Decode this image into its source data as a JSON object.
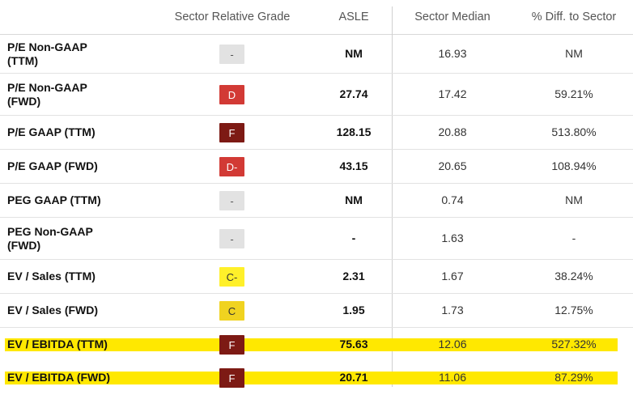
{
  "header": {
    "col_grade": "Sector Relative Grade",
    "col_ticker": "ASLE",
    "col_median": "Sector Median",
    "col_diff": "% Diff. to Sector"
  },
  "colors": {
    "grade_gray": "#e2e2e2",
    "grade_red": "#d23a35",
    "grade_darkred": "#7d1a14",
    "grade_yellow": "#fff02a",
    "grade_gold": "#f0d320",
    "highlight": "#ffe800"
  },
  "rows": [
    {
      "metric_line1": "P/E Non-GAAP",
      "metric_line2": "(TTM)",
      "grade": "-",
      "asle": "NM",
      "median": "16.93",
      "diff": "NM"
    },
    {
      "metric_line1": "P/E Non-GAAP",
      "metric_line2": "(FWD)",
      "grade": "D",
      "asle": "27.74",
      "median": "17.42",
      "diff": "59.21%"
    },
    {
      "metric_line1": "P/E GAAP (TTM)",
      "metric_line2": "",
      "grade": "F",
      "asle": "128.15",
      "median": "20.88",
      "diff": "513.80%"
    },
    {
      "metric_line1": "P/E GAAP (FWD)",
      "metric_line2": "",
      "grade": "D-",
      "asle": "43.15",
      "median": "20.65",
      "diff": "108.94%"
    },
    {
      "metric_line1": "PEG GAAP (TTM)",
      "metric_line2": "",
      "grade": "-",
      "asle": "NM",
      "median": "0.74",
      "diff": "NM"
    },
    {
      "metric_line1": "PEG Non-GAAP",
      "metric_line2": "(FWD)",
      "grade": "-",
      "asle": "-",
      "median": "1.63",
      "diff": "-"
    },
    {
      "metric_line1": "EV / Sales (TTM)",
      "metric_line2": "",
      "grade": "C-",
      "asle": "2.31",
      "median": "1.67",
      "diff": "38.24%"
    },
    {
      "metric_line1": "EV / Sales (FWD)",
      "metric_line2": "",
      "grade": "C",
      "asle": "1.95",
      "median": "1.73",
      "diff": "12.75%"
    },
    {
      "metric_line1": "EV / EBITDA (TTM)",
      "metric_line2": "",
      "grade": "F",
      "asle": "75.63",
      "median": "12.06",
      "diff": "527.32%"
    },
    {
      "metric_line1": "EV / EBITDA (FWD)",
      "metric_line2": "",
      "grade": "F",
      "asle": "20.71",
      "median": "11.06",
      "diff": "87.29%"
    }
  ]
}
